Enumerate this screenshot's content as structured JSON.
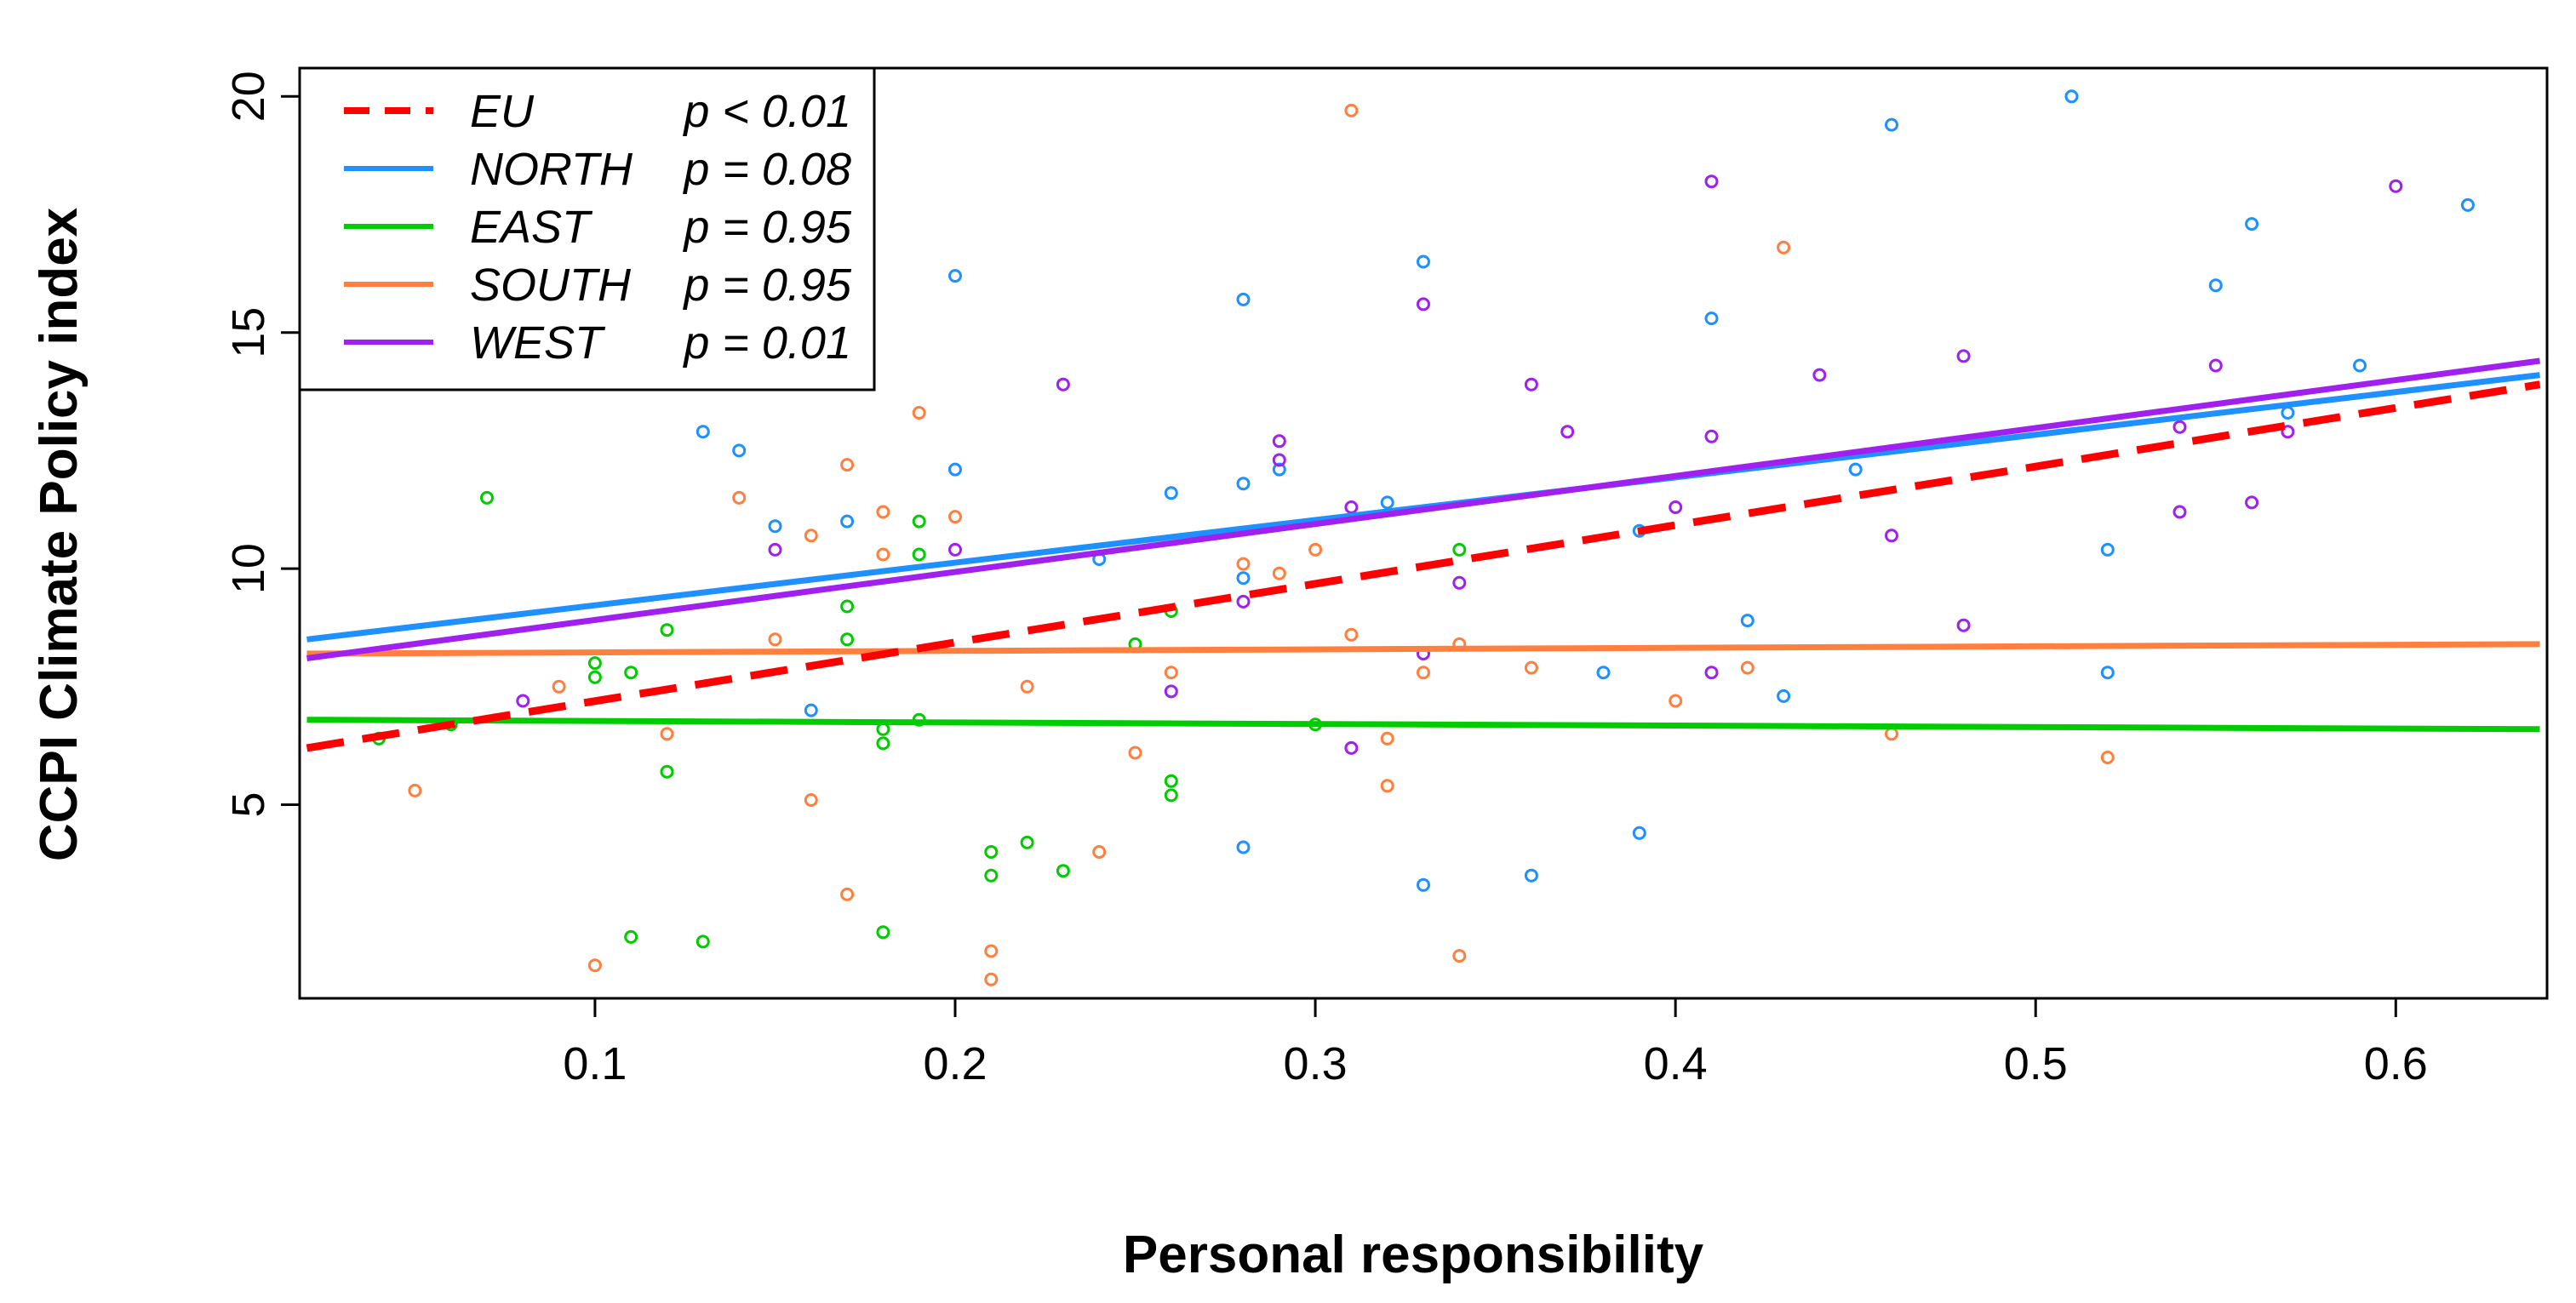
{
  "chart_data": {
    "type": "scatter",
    "title": "",
    "xlabel": "Personal responsibility",
    "ylabel": "CCPI Climate Policy index",
    "xlim": [
      0.018,
      0.642
    ],
    "ylim": [
      0.9,
      20.6
    ],
    "x_ticks": [
      "0.1",
      "0.2",
      "0.3",
      "0.4",
      "0.5",
      "0.6"
    ],
    "y_ticks": [
      "5",
      "10",
      "15",
      "20"
    ],
    "legend_position": "top-left",
    "series": [
      {
        "name": "EU",
        "p_label": "p < 0.01",
        "color": "#ff0000",
        "dashed": true,
        "fit": [
          [
            0.02,
            6.2
          ],
          [
            0.64,
            13.9
          ]
        ],
        "points": []
      },
      {
        "name": "NORTH",
        "p_label": "p = 0.08",
        "color": "#1e90ff",
        "dashed": false,
        "fit": [
          [
            0.02,
            8.5
          ],
          [
            0.64,
            14.1
          ]
        ],
        "points": [
          [
            0.13,
            12.9
          ],
          [
            0.14,
            12.5
          ],
          [
            0.15,
            10.9
          ],
          [
            0.17,
            11.0
          ],
          [
            0.16,
            7.0
          ],
          [
            0.2,
            16.2
          ],
          [
            0.2,
            12.1
          ],
          [
            0.24,
            10.2
          ],
          [
            0.26,
            11.6
          ],
          [
            0.28,
            15.7
          ],
          [
            0.28,
            11.8
          ],
          [
            0.28,
            9.8
          ],
          [
            0.28,
            4.1
          ],
          [
            0.29,
            12.1
          ],
          [
            0.32,
            11.4
          ],
          [
            0.33,
            16.5
          ],
          [
            0.33,
            3.3
          ],
          [
            0.36,
            3.5
          ],
          [
            0.38,
            7.8
          ],
          [
            0.39,
            4.4
          ],
          [
            0.39,
            10.8
          ],
          [
            0.41,
            15.3
          ],
          [
            0.42,
            8.9
          ],
          [
            0.43,
            7.3
          ],
          [
            0.45,
            12.1
          ],
          [
            0.46,
            19.4
          ],
          [
            0.51,
            20.0
          ],
          [
            0.52,
            10.4
          ],
          [
            0.52,
            7.8
          ],
          [
            0.55,
            16.0
          ],
          [
            0.56,
            17.3
          ],
          [
            0.57,
            13.3
          ],
          [
            0.59,
            14.3
          ],
          [
            0.62,
            17.7
          ]
        ]
      },
      {
        "name": "EAST",
        "p_label": "p = 0.95",
        "color": "#00cc00",
        "dashed": false,
        "fit": [
          [
            0.02,
            6.8
          ],
          [
            0.64,
            6.6
          ]
        ],
        "points": [
          [
            0.04,
            6.4
          ],
          [
            0.06,
            6.7
          ],
          [
            0.07,
            11.5
          ],
          [
            0.1,
            8.0
          ],
          [
            0.1,
            7.7
          ],
          [
            0.11,
            7.8
          ],
          [
            0.11,
            2.2
          ],
          [
            0.12,
            8.7
          ],
          [
            0.12,
            5.7
          ],
          [
            0.13,
            2.1
          ],
          [
            0.17,
            9.2
          ],
          [
            0.17,
            8.5
          ],
          [
            0.18,
            6.6
          ],
          [
            0.18,
            6.3
          ],
          [
            0.18,
            2.3
          ],
          [
            0.19,
            11.0
          ],
          [
            0.19,
            10.3
          ],
          [
            0.19,
            6.8
          ],
          [
            0.21,
            4.0
          ],
          [
            0.21,
            3.5
          ],
          [
            0.22,
            4.2
          ],
          [
            0.23,
            3.6
          ],
          [
            0.25,
            8.4
          ],
          [
            0.26,
            9.1
          ],
          [
            0.26,
            5.5
          ],
          [
            0.26,
            5.2
          ],
          [
            0.3,
            6.7
          ],
          [
            0.34,
            10.4
          ]
        ]
      },
      {
        "name": "SOUTH",
        "p_label": "p = 0.95",
        "color": "#ff7f3f",
        "dashed": false,
        "fit": [
          [
            0.02,
            8.2
          ],
          [
            0.64,
            8.4
          ]
        ],
        "points": [
          [
            0.05,
            5.3
          ],
          [
            0.09,
            7.5
          ],
          [
            0.1,
            1.6
          ],
          [
            0.12,
            6.5
          ],
          [
            0.14,
            11.5
          ],
          [
            0.15,
            8.5
          ],
          [
            0.16,
            10.7
          ],
          [
            0.16,
            5.1
          ],
          [
            0.17,
            12.2
          ],
          [
            0.17,
            3.1
          ],
          [
            0.18,
            11.2
          ],
          [
            0.18,
            10.3
          ],
          [
            0.19,
            13.3
          ],
          [
            0.2,
            11.1
          ],
          [
            0.21,
            1.9
          ],
          [
            0.21,
            1.3
          ],
          [
            0.22,
            7.5
          ],
          [
            0.24,
            4.0
          ],
          [
            0.25,
            6.1
          ],
          [
            0.26,
            7.8
          ],
          [
            0.28,
            10.1
          ],
          [
            0.29,
            9.9
          ],
          [
            0.3,
            10.4
          ],
          [
            0.31,
            19.7
          ],
          [
            0.31,
            8.6
          ],
          [
            0.32,
            6.4
          ],
          [
            0.32,
            5.4
          ],
          [
            0.33,
            7.8
          ],
          [
            0.34,
            8.4
          ],
          [
            0.34,
            1.8
          ],
          [
            0.36,
            7.9
          ],
          [
            0.4,
            7.2
          ],
          [
            0.42,
            7.9
          ],
          [
            0.43,
            16.8
          ],
          [
            0.46,
            6.5
          ],
          [
            0.52,
            6.0
          ]
        ]
      },
      {
        "name": "WEST",
        "p_label": "p = 0.01",
        "color": "#a020f0",
        "dashed": false,
        "fit": [
          [
            0.02,
            8.1
          ],
          [
            0.64,
            14.4
          ]
        ],
        "points": [
          [
            0.08,
            7.2
          ],
          [
            0.15,
            10.4
          ],
          [
            0.2,
            10.4
          ],
          [
            0.23,
            13.9
          ],
          [
            0.26,
            7.4
          ],
          [
            0.28,
            9.3
          ],
          [
            0.29,
            12.7
          ],
          [
            0.29,
            12.3
          ],
          [
            0.31,
            11.3
          ],
          [
            0.31,
            6.2
          ],
          [
            0.33,
            15.6
          ],
          [
            0.33,
            8.2
          ],
          [
            0.34,
            9.7
          ],
          [
            0.36,
            13.9
          ],
          [
            0.37,
            12.9
          ],
          [
            0.4,
            11.3
          ],
          [
            0.41,
            18.2
          ],
          [
            0.41,
            12.8
          ],
          [
            0.41,
            7.8
          ],
          [
            0.44,
            14.1
          ],
          [
            0.46,
            10.7
          ],
          [
            0.48,
            14.5
          ],
          [
            0.48,
            8.8
          ],
          [
            0.54,
            13.0
          ],
          [
            0.54,
            11.2
          ],
          [
            0.55,
            14.3
          ],
          [
            0.56,
            11.4
          ],
          [
            0.57,
            12.9
          ],
          [
            0.6,
            18.1
          ]
        ]
      }
    ]
  }
}
